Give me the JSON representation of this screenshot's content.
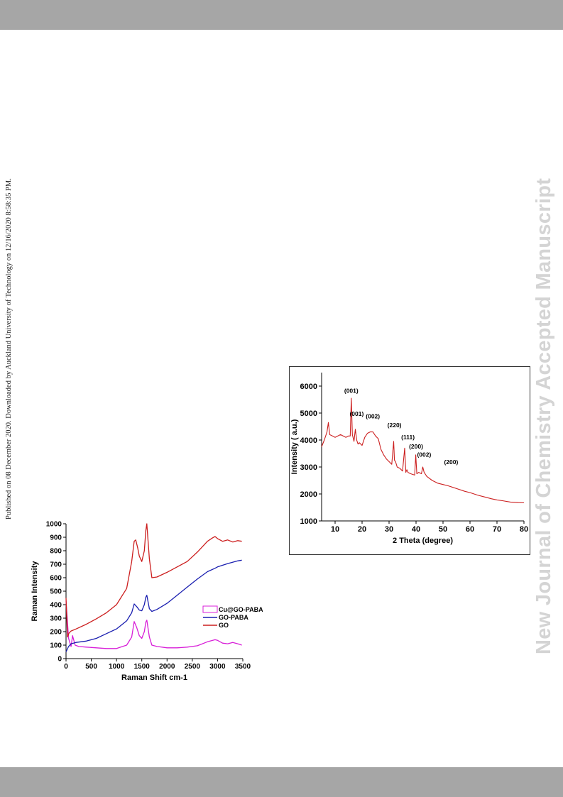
{
  "page": {
    "side_note": "Published on 08 December 2020. Downloaded by Auckland University of Technology on 12/16/2020 8:58:35 PM.",
    "watermark": "New Journal of Chemistry Accepted Manuscript"
  },
  "chart_data": [
    {
      "type": "line",
      "title": "",
      "xlabel": "Raman Shift cm-1",
      "ylabel": "Raman Intensity",
      "xlim": [
        0,
        3500
      ],
      "ylim": [
        0,
        1000
      ],
      "xticks": [
        0,
        500,
        1000,
        1500,
        2000,
        2500,
        3000,
        3500
      ],
      "yticks": [
        0,
        100,
        200,
        300,
        400,
        500,
        600,
        700,
        800,
        900,
        1000
      ],
      "grid": false,
      "legend": "center-right",
      "series": [
        {
          "name": "Cu@GO-PABA",
          "color": "#d81fd8",
          "x": [
            0,
            50,
            100,
            130,
            180,
            250,
            400,
            600,
            800,
            1000,
            1200,
            1300,
            1350,
            1400,
            1450,
            1500,
            1550,
            1580,
            1600,
            1650,
            1700,
            1800,
            2000,
            2200,
            2400,
            2600,
            2800,
            2950,
            3000,
            3100,
            3200,
            3300,
            3400,
            3480
          ],
          "y": [
            430,
            150,
            90,
            170,
            100,
            90,
            85,
            80,
            75,
            75,
            100,
            160,
            275,
            230,
            170,
            150,
            200,
            270,
            285,
            160,
            100,
            90,
            80,
            80,
            85,
            95,
            125,
            140,
            135,
            115,
            110,
            120,
            110,
            100
          ]
        },
        {
          "name": "GO-PABA",
          "color": "#1a1fb0",
          "x": [
            0,
            50,
            100,
            200,
            400,
            600,
            800,
            1000,
            1200,
            1300,
            1350,
            1400,
            1450,
            1500,
            1550,
            1580,
            1600,
            1650,
            1700,
            1800,
            2000,
            2200,
            2400,
            2600,
            2800,
            2950,
            3000,
            3200,
            3400,
            3480
          ],
          "y": [
            50,
            90,
            110,
            120,
            130,
            150,
            185,
            220,
            280,
            340,
            405,
            385,
            360,
            355,
            400,
            455,
            470,
            370,
            350,
            365,
            410,
            470,
            530,
            590,
            645,
            670,
            680,
            705,
            725,
            730
          ]
        },
        {
          "name": "GO",
          "color": "#cc1f1f",
          "x": [
            0,
            30,
            60,
            100,
            200,
            400,
            600,
            800,
            1000,
            1200,
            1300,
            1350,
            1380,
            1420,
            1450,
            1500,
            1550,
            1580,
            1600,
            1650,
            1700,
            1800,
            2000,
            2200,
            2400,
            2600,
            2700,
            2800,
            2900,
            2950,
            3000,
            3100,
            3200,
            3300,
            3400,
            3480
          ],
          "y": [
            450,
            160,
            190,
            205,
            220,
            255,
            295,
            340,
            400,
            520,
            720,
            870,
            880,
            820,
            760,
            720,
            800,
            950,
            1000,
            740,
            600,
            605,
            640,
            680,
            720,
            790,
            830,
            870,
            895,
            905,
            890,
            870,
            880,
            865,
            875,
            870
          ]
        }
      ]
    },
    {
      "type": "line",
      "title": "",
      "xlabel": "2 Theta (degree)",
      "ylabel": "Intensity ( a.u.)",
      "xlim": [
        5,
        80
      ],
      "ylim": [
        1000,
        6500
      ],
      "xticks": [
        10,
        20,
        30,
        40,
        50,
        60,
        70,
        80
      ],
      "yticks": [
        1000,
        2000,
        3000,
        4000,
        5000,
        6000
      ],
      "grid": false,
      "series": [
        {
          "name": "",
          "color": "#cc1f1f",
          "x": [
            5,
            6,
            7,
            7.5,
            8,
            9,
            10,
            12,
            14,
            15,
            15.6,
            16,
            16.4,
            17,
            17.5,
            18,
            18.5,
            19,
            20,
            21,
            22,
            23,
            24,
            25,
            26,
            27,
            28,
            29,
            30,
            31,
            31.7,
            32,
            32.4,
            33,
            34,
            35,
            35.8,
            36.2,
            36.6,
            37,
            38,
            39.5,
            39.9,
            40.3,
            41,
            42,
            42.5,
            43,
            44,
            46,
            48,
            50,
            52,
            55,
            58,
            60,
            63,
            65,
            68,
            70,
            72,
            75,
            78,
            80
          ],
          "y": [
            3750,
            4000,
            4300,
            4650,
            4200,
            4150,
            4100,
            4200,
            4100,
            4150,
            4150,
            5550,
            4200,
            3950,
            4400,
            4000,
            3850,
            3900,
            3800,
            4100,
            4250,
            4300,
            4300,
            4150,
            4050,
            3650,
            3450,
            3300,
            3200,
            3100,
            3950,
            3250,
            3200,
            3000,
            2950,
            2850,
            3700,
            2800,
            2900,
            2800,
            2750,
            2700,
            3450,
            2750,
            2800,
            2750,
            3000,
            2800,
            2650,
            2500,
            2400,
            2350,
            2300,
            2200,
            2100,
            2050,
            1950,
            1900,
            1820,
            1780,
            1750,
            1700,
            1680,
            1670
          ]
        }
      ],
      "annotations": [
        {
          "label": "(001)",
          "x": 16.0,
          "y": 5750
        },
        {
          "label": "(001)",
          "x": 18.0,
          "y": 4900
        },
        {
          "label": "(002)",
          "x": 24.0,
          "y": 4800
        },
        {
          "label": "(220)",
          "x": 32.0,
          "y": 4480
        },
        {
          "label": "(111)",
          "x": 37.0,
          "y": 4020
        },
        {
          "label": "(200)",
          "x": 40.0,
          "y": 3680
        },
        {
          "label": "(002)",
          "x": 43.0,
          "y": 3380
        },
        {
          "label": "(200)",
          "x": 53.0,
          "y": 3100
        }
      ]
    }
  ]
}
